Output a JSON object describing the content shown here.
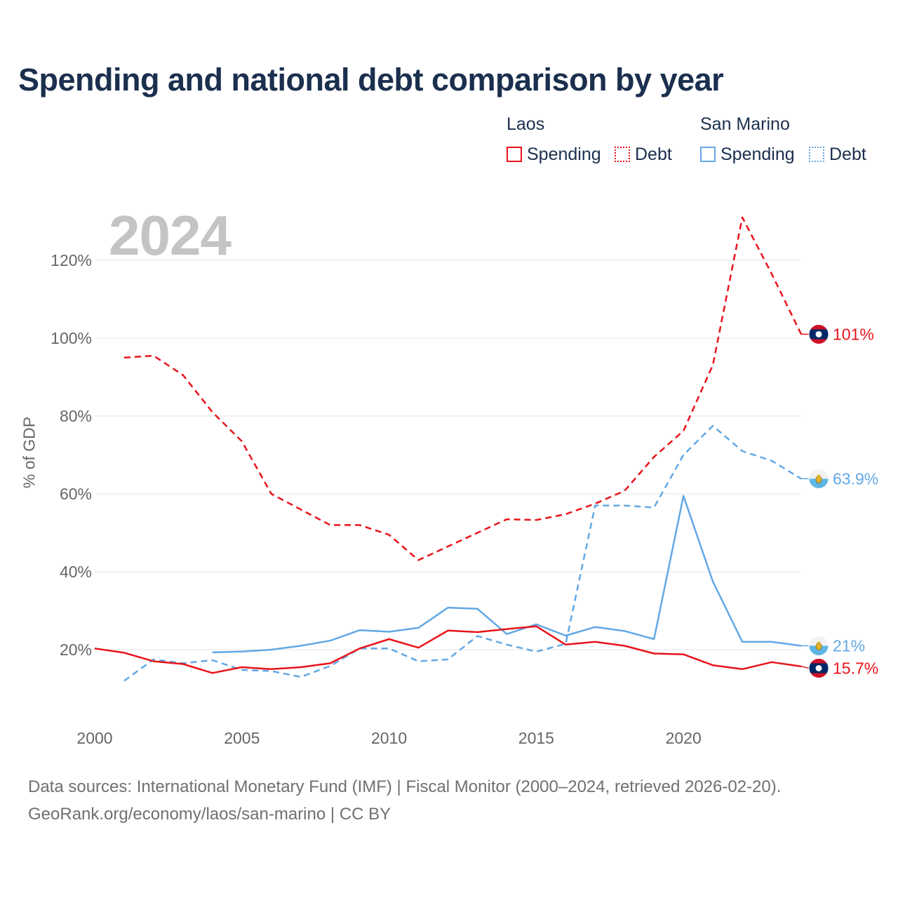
{
  "chart_data": {
    "type": "line",
    "title": "Spending and national debt comparison by year",
    "year_label": "2024",
    "ylabel": "% of GDP",
    "xlabel": "",
    "xlim": [
      2000,
      2024
    ],
    "ylim": [
      5,
      135
    ],
    "y_ticks": [
      20,
      40,
      60,
      80,
      100,
      120
    ],
    "y_tick_labels": [
      "20%",
      "40%",
      "60%",
      "80%",
      "100%",
      "120%"
    ],
    "x_ticks": [
      2000,
      2005,
      2010,
      2015,
      2020
    ],
    "x_tick_labels": [
      "2000",
      "2005",
      "2010",
      "2015",
      "2020"
    ],
    "grid": true,
    "legend": {
      "placement": "top-right",
      "groups": [
        {
          "name": "Laos",
          "items": [
            "Spending",
            "Debt"
          ],
          "color": "#e8141b"
        },
        {
          "name": "San Marino",
          "items": [
            "Spending",
            "Debt"
          ],
          "color": "#62a8e5"
        }
      ]
    },
    "series": [
      {
        "name": "Laos Debt",
        "country": "Laos",
        "metric": "Debt",
        "color": "#e8141b",
        "dashed": true,
        "x": [
          2001,
          2002,
          2003,
          2004,
          2005,
          2006,
          2007,
          2008,
          2009,
          2010,
          2011,
          2012,
          2013,
          2014,
          2015,
          2016,
          2017,
          2018,
          2019,
          2020,
          2021,
          2022,
          2023,
          2024
        ],
        "values": [
          95,
          95.5,
          90.5,
          81,
          73.5,
          60,
          56,
          52,
          52,
          49.5,
          43,
          46.5,
          50,
          53.5,
          53.3,
          54.8,
          57.5,
          60.8,
          69.5,
          76.2,
          93.1,
          131,
          116.5,
          101
        ],
        "end_label": "101%",
        "flag": "laos"
      },
      {
        "name": "San Marino Debt",
        "country": "San Marino",
        "metric": "Debt",
        "color": "#62a8e5",
        "dashed": true,
        "x": [
          2001,
          2002,
          2003,
          2004,
          2005,
          2006,
          2007,
          2008,
          2009,
          2010,
          2011,
          2012,
          2013,
          2014,
          2015,
          2016,
          2017,
          2018,
          2019,
          2020,
          2021,
          2022,
          2023,
          2024
        ],
        "values": [
          12,
          17.5,
          16.5,
          17.3,
          14.8,
          14.5,
          13,
          15.8,
          20.3,
          20.3,
          17,
          17.5,
          23.5,
          21.3,
          19.5,
          21.5,
          57,
          57,
          56.5,
          70,
          77.5,
          71,
          68.5,
          63.9
        ],
        "end_label": "63.9%",
        "flag": "san-marino"
      },
      {
        "name": "San Marino Spending",
        "country": "San Marino",
        "metric": "Spending",
        "color": "#62a8e5",
        "dashed": false,
        "x": [
          2004,
          2005,
          2006,
          2007,
          2008,
          2009,
          2010,
          2011,
          2012,
          2013,
          2014,
          2015,
          2016,
          2017,
          2018,
          2019,
          2020,
          2021,
          2022,
          2023,
          2024
        ],
        "values": [
          19.3,
          19.5,
          20,
          21,
          22.3,
          25,
          24.6,
          25.6,
          30.8,
          30.5,
          24,
          26.5,
          23.6,
          25.8,
          24.8,
          22.7,
          59.5,
          37.5,
          22,
          22,
          21
        ],
        "end_label": "21%",
        "flag": "san-marino"
      },
      {
        "name": "Laos Spending",
        "country": "Laos",
        "metric": "Spending",
        "color": "#e8141b",
        "dashed": false,
        "x": [
          2000,
          2001,
          2002,
          2003,
          2004,
          2005,
          2006,
          2007,
          2008,
          2009,
          2010,
          2011,
          2012,
          2013,
          2014,
          2015,
          2016,
          2017,
          2018,
          2019,
          2020,
          2021,
          2022,
          2023,
          2024
        ],
        "values": [
          20.3,
          19.2,
          17,
          16.3,
          14,
          15.5,
          15,
          15.5,
          16.5,
          20.3,
          22.7,
          20.5,
          24.9,
          24.5,
          25.3,
          26,
          21.3,
          22,
          21,
          19,
          18.8,
          16,
          15,
          16.8,
          15.7
        ],
        "end_label": "15.7%",
        "flag": "laos"
      }
    ]
  },
  "footer": {
    "source": "Data sources: International Monetary Fund (IMF) | Fiscal Monitor (2000–2024, retrieved 2026-02-20).",
    "credit": "GeoRank.org/economy/laos/san-marino | CC BY"
  }
}
